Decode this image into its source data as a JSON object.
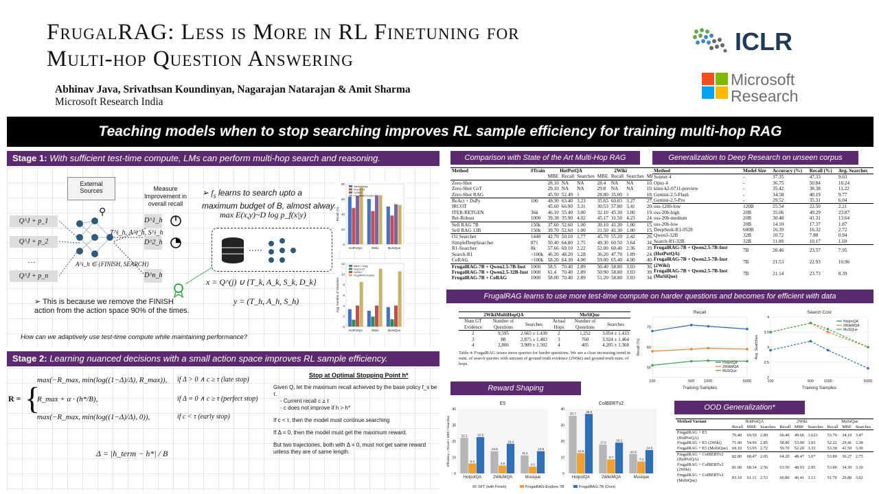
{
  "header": {
    "title_line1": "FrugalRAG: Less is More in RL Finetuning for",
    "title_line2": "Multi-hop Question Answering",
    "authors": "Abhinav Java, Srivathsan Koundinyan, Nagarajan Natarajan & Amit Sharma",
    "affiliation": "Microsoft Research India",
    "logo1": "ICLR",
    "logo2_line1": "Microsoft",
    "logo2_line2": "Research"
  },
  "banner": "Teaching models when to stop searching improves RL sample efficiency for training multi-hop RAG",
  "stage1": {
    "bold": "Stage 1:",
    "text": " With sufficient test-time compute, LMs can perform multi-hop search and reasoning.",
    "external": "External Sources",
    "measure": "Measure Improvement in overall recall",
    "q1": "Q^J + p_1",
    "q2": "Q^J + p_2",
    "qdots": "…",
    "qn": "Q^J + p_n",
    "action_set": "A^i_h ∈ {FINISH, SEARCH}",
    "tas": "T^i_h, A^i_h, S^i_h",
    "d1": "D^1_h",
    "d2": "D^2_h",
    "dn": "D^n_h",
    "fs_text": "learns to search upto a maximum budget of B, almost always",
    "max_eq": "max E(x,y)~D log p_f(x|y)",
    "x_eq": "x = Q^(j) ∪ {T_k, A_k, S_k, D_k}",
    "y_eq": "y = (T_h, A_h, S_h)",
    "bullet": "This is because we remove the FINISH action from the action space 90% of the times.",
    "question": "How can we adaptively use test-time compute while maintaining performance?"
  },
  "stage2": {
    "bold": "Stage 2:",
    "text": " Learning nuanced decisions with a small action space improves RL sample efficiency.",
    "r_label": "R =",
    "case1": "max(−R_max, min(log((1−Δ)/Δ), R_max)),",
    "cond1": "if Δ > 0 ∧ c ≥ τ   (late stop)",
    "case2": "R_max + α · (h*/B),",
    "cond2": "if Δ = 0 ∧ c ≥ τ   (perfect stop)",
    "case3": "max(−R_max, min(log((1−Δ)/Δ), 0)),",
    "cond3": "if c < τ   (early stop)",
    "delta": "Δ = |h_term − h*| / B",
    "stop_title": "Stop at Optimal Stopping Point h*",
    "stop_p1": "Given Q, let the maximum recall achieved by the base policy f_s be τ.",
    "stop_b1": "Current recall c ≥ τ",
    "stop_b2": "c does not improve if h > h*",
    "stop_p2": "If c < τ, then the model must continue searching",
    "stop_p3": "If Δ = 0, then the model must get the maximum reward.",
    "stop_p4": "But two trajectories, both with Δ = 0, must not get same reward unless they are of same length."
  },
  "sota": {
    "header": "Comparison with State of the Art Multi-Hop RAG",
    "cols": [
      "Method",
      "#Train",
      "HotPotQA",
      "2Wiki",
      "MuSiQue"
    ],
    "sub": [
      "MBE",
      "Recall",
      "Searches"
    ],
    "groups": [
      [
        [
          "Zero-Shot",
          "",
          "28.10",
          "NA",
          "NA",
          "28.4",
          "NA",
          "NA",
          "10.60",
          "NA",
          "NA"
        ],
        [
          "Zero-Shot CoT",
          "",
          "29.10",
          "NA",
          "NA",
          "29.8",
          "NA",
          "NA",
          "10.7",
          "NA",
          "NA"
        ],
        [
          "Zero-Shot RAG",
          "",
          "45.50",
          "52.49",
          "1",
          "28.80",
          "35.00",
          "1",
          "18.00",
          "22.01",
          "1"
        ]
      ],
      [
        [
          "ReAct + DsPy",
          "100",
          "49.30",
          "63.40",
          "3.23",
          "35.65",
          "60.03",
          "3.27",
          "27.30",
          "49.8",
          "3.74"
        ],
        [
          "IRCOT",
          "",
          "45.60",
          "66.90",
          "3.31",
          "30.53",
          "57.80",
          "3.41",
          "20.62",
          "44.10",
          "3.19"
        ],
        [
          "ITER-RETGEN",
          "36k",
          "46.10",
          "55.40",
          "3.00",
          "32.10",
          "45.30",
          "3.00",
          "19.10",
          "34.20",
          "3.00"
        ],
        [
          "Ret-Robust",
          "1000",
          "39.38",
          "35.90",
          "4.02",
          "45.17",
          "31.50",
          "4.23",
          "24.24",
          "18.80",
          "4.23"
        ]
      ],
      [
        [
          "Self RAG 7B",
          "150k",
          "37.60",
          "52.60",
          "1.00",
          "30.10",
          "41.30",
          "1.00",
          "15.00",
          "26.70",
          "1.00"
        ],
        [
          "Self RAG 13B",
          "150k",
          "39.70",
          "52.60",
          "1.00",
          "31.50",
          "41.30",
          "1.00",
          "15.00",
          "26.70",
          "1.00"
        ]
      ],
      [
        [
          "O2 Searcher",
          "1440",
          "42.70",
          "50.10",
          "1.77",
          "45.70",
          "55.20",
          "2.42",
          "26.40",
          "37.00",
          "1.95"
        ],
        [
          "SimpleDeepSearcher",
          "871",
          "50.40",
          "64.80",
          "2.75",
          "49.30",
          "60.50",
          "3.64",
          "34.30",
          "50.40",
          "2.86"
        ],
        [
          "R1-Searcher",
          "8k",
          "57.66",
          "69.10",
          "2.22",
          "52.00",
          "60.40",
          "2.36",
          "39.78",
          "57.70",
          "2.31"
        ],
        [
          "Search-R1",
          ">100k",
          "46.20",
          "48.20",
          "1.28",
          "36.20",
          "47.70",
          "1.89",
          "24.80",
          "38.10",
          "1.36"
        ],
        [
          "CoRAG",
          ">100k",
          "58.20",
          "64.30",
          "4.00",
          "59.00",
          "65.40",
          "4.00",
          "40.50",
          "54.00",
          "4.00"
        ]
      ],
      [
        [
          "FrugalRAG-7B + Qwen2.5-7B-Inst",
          "1000",
          "58.5",
          "70.40",
          "2.89",
          "50.40",
          "58.80",
          "3.03",
          "36.40",
          "53.30",
          "3.30"
        ],
        [
          "FrugalRAG-7B + Qwen2.5-32B-Inst",
          "1000",
          "61.4",
          "70.40",
          "2.89",
          "50.90",
          "58.80",
          "3.03",
          "39.90",
          "53.30",
          "3.30"
        ],
        [
          "FrugalRAG-7B + CoRAG",
          "1000",
          "58.00",
          "70.40",
          "2.89",
          "51.20",
          "58.80",
          "3.03",
          "34.60",
          "53.30",
          "3.30"
        ]
      ]
    ]
  },
  "deep": {
    "header": "Generalization to Deep Research on unseen corpus",
    "cols": [
      "Method",
      "Model Size",
      "Accuracy (%)",
      "Recall (%)",
      "Avg. Searches"
    ],
    "groups": [
      [
        [
          "Sonnet 4",
          "-",
          "37.35",
          "47.33",
          "9.03"
        ],
        [
          "Opus 4",
          "-",
          "36.75",
          "50.84",
          "10.24"
        ],
        [
          "kimi-k2-0711-preview",
          "-",
          "35.42",
          "38.38",
          "11.22"
        ],
        [
          "Gemini-2.5-Flash",
          "-",
          "34.58",
          "40.19",
          "9.77"
        ],
        [
          "Gemini-2.5-Pro",
          "-",
          "29.52",
          "35.31",
          "6.04"
        ]
      ],
      [
        [
          "oss-120b-low",
          "120B",
          "25.54",
          "22.50",
          "2.21"
        ],
        [
          "oss-20b-high",
          "20B",
          "35.06",
          "49.29",
          "23.87"
        ],
        [
          "oss-20b-medium",
          "20B",
          "30.48",
          "41.31",
          "13.64"
        ],
        [
          "oss-20b-low",
          "20B",
          "14.10",
          "17.37",
          "1.87"
        ],
        [
          "DeepSeek-R1-0528",
          "600B",
          "16.39",
          "16.32",
          "2.72"
        ],
        [
          "Qwen3-32B",
          "32B",
          "10.72",
          "7.80",
          "0.94"
        ],
        [
          "Search-R1-32B",
          "32B",
          "11.08",
          "10.17",
          "1.69"
        ]
      ],
      [
        [
          "FrugalRAG-7B + Qwen2.5-7B-Inst (HotPotQA)",
          "7B",
          "20.46",
          "23.57",
          "7.95"
        ],
        [
          "FrugalRAG-7B + Qwen2.5-7B-Inst (2Wiki)",
          "7B",
          "21.53",
          "22.93",
          "10.96"
        ],
        [
          "FrugalRAG-7B + Qwen2.5-7B-Inst (MuSiQue)",
          "7B",
          "21.14",
          "23.73",
          "8.39"
        ]
      ]
    ]
  },
  "compute": {
    "header": "FrugalRAG learns to use more test-time compute on harder questions and becomes for efficient with data",
    "t_h1": "2WikiMultiHopQA",
    "t_h2": "MuSiQue",
    "t_cols": [
      "Num GT Evidence",
      "Number of Questions",
      "Searches",
      "Actual Hops",
      "Number of Questions",
      "Searches"
    ],
    "t_rows": [
      [
        "2",
        "9,595",
        "2.665 ± 1.430",
        "2",
        "1,252",
        "3.054 ± 1.433"
      ],
      [
        "3",
        "88",
        "2.875 ± 1.483",
        "3",
        "760",
        "3.924 ± 1.464"
      ],
      [
        "4",
        "2,806",
        "3.909 ± 1.502",
        "4",
        "405",
        "4.205 ± 1.368"
      ]
    ],
    "caption": "Table 4: FrugalRAG issues more queries for harder questions. We see a clear increasing trend in num. of search queries with amount of ground truth evidence (2Wiki) and ground truth num. of hops."
  },
  "reward": {
    "header": "Reward Shaping"
  },
  "ood": {
    "header": "OOD Generalization*",
    "cols": [
      "Method Variant",
      "HotPotQA",
      "2Wiki",
      "MuSiQue"
    ],
    "sub": [
      "Recall",
      "MBE",
      "Searches"
    ],
    "rows": [
      [
        "FrugalRAG + E5 (HotPotQA)",
        "70.40",
        "69.50",
        "2.89",
        "60.40",
        "49.66",
        "3.623",
        "53.70",
        "34.10",
        "3.47"
      ],
      [
        "FrugalRAG + E5 (2Wiki)",
        "71.00",
        "54.96",
        "2.85",
        "58.80",
        "53.00",
        "3.03",
        "52.22",
        "29.41",
        "3.38"
      ],
      [
        "FrugalRAG + E5 (MuSiQue)",
        "69.10",
        "53.95",
        "2.72",
        "59.70",
        "52.20",
        "3.33",
        "53.30",
        "41.50",
        "3.30"
      ],
      [
        "FrugalRAG + ColBERTv2 (HotPotQA)",
        "82.80",
        "68.47",
        "2.05",
        "64.20",
        "48.47",
        "3.07",
        "53.80",
        "36.27",
        "2.75"
      ],
      [
        "FrugalRAG + ColBERTv2 (2Wiki)",
        "81.90",
        "68.34",
        "2.56",
        "63.50",
        "48.93",
        "2.95",
        "53.80",
        "34.30",
        "3.10"
      ],
      [
        "FrugalRAG + ColBERTv2 (MuSiQue)",
        "83.10",
        "61.11",
        "2.53",
        "60.80",
        "46.41",
        "3.13",
        "51.70",
        "29.80",
        "3.02"
      ]
    ]
  },
  "chart_data": [
    {
      "type": "bar",
      "ylabel": "Recall (%)",
      "categories": [
        "HotPotQA",
        "2Wiki",
        "MuSiQue"
      ],
      "ylim": [
        0,
        80
      ],
      "legend": "top-left",
      "series": [
        {
          "name": "Naive + Dspy",
          "color": "#4472c4",
          "values": [
            63,
            60,
            50
          ]
        },
        {
          "name": "Search-R1",
          "color": "#c0504d",
          "values": [
            48,
            44,
            38
          ]
        },
        {
          "name": "CoRAG",
          "color": "#8064a2",
          "values": [
            64,
            65,
            53
          ]
        },
        {
          "name": "FrugalRAG-Explore",
          "color": "#c9b26b",
          "values": [
            77,
            65,
            52
          ]
        }
      ]
    },
    {
      "type": "bar",
      "ylabel": "Avg. Number of Searches",
      "categories": [
        "HotPotQA",
        "2Wiki",
        "MuSiQue"
      ],
      "ylim": [
        0,
        12
      ],
      "legend": "top-left",
      "series": [
        {
          "name": "Naive + Dspy",
          "color": "#4472c4",
          "values": [
            3.3,
            3.0,
            3.7
          ]
        },
        {
          "name": "Search-R1",
          "color": "#2e8b57",
          "values": [
            1.3,
            1.9,
            1.4
          ]
        },
        {
          "name": "CoRAG",
          "color": "#c0504d",
          "values": [
            4.0,
            4.0,
            4.0
          ]
        },
        {
          "name": "FrugalRAG-Explore",
          "color": "#c9b26b",
          "values": [
            8.5,
            11.0,
            10.5
          ]
        }
      ]
    },
    {
      "type": "line",
      "title": "Recall",
      "xlabel": "Training Samples",
      "ylabel": "Recall (%)",
      "x": [
        100,
        500,
        1000,
        5000
      ],
      "ylim": [
        45,
        75
      ],
      "legend": "bottom-right",
      "series": [
        {
          "name": "HotpotQA",
          "color": "#2e6fb5",
          "values": [
            68,
            71,
            70.4,
            69
          ]
        },
        {
          "name": "2WikiMQA",
          "color": "#e8822c",
          "values": [
            58,
            59,
            59.5,
            59
          ]
        },
        {
          "name": "MuSiQue",
          "color": "#3aa84a",
          "values": [
            51,
            53,
            53.3,
            53
          ]
        }
      ]
    },
    {
      "type": "line",
      "title": "Search Cost",
      "xlabel": "Training Samples",
      "ylabel": "Avg. Searches",
      "x": [
        100,
        500,
        1000,
        5000
      ],
      "ylim": [
        2.0,
        4.0
      ],
      "legend": "top-right",
      "series": [
        {
          "name": "HotpotQA",
          "color": "#2e6fb5",
          "values": [
            2.9,
            3.2,
            2.9,
            2.3
          ]
        },
        {
          "name": "2WikiMQA",
          "color": "#e8822c",
          "values": [
            3.5,
            3.8,
            3.5,
            3.0
          ]
        },
        {
          "name": "MuSiQue",
          "color": "#3aa84a",
          "values": [
            3.5,
            3.8,
            3.6,
            3.0
          ]
        }
      ]
    },
    {
      "type": "bar",
      "title": "E5",
      "ylabel": "Efficiency = Recall × MBE / Searches",
      "categories": [
        "HotpotQA",
        "2WikiMQA",
        "Musique"
      ],
      "ylim": [
        0,
        40
      ],
      "series": [
        {
          "name": "SFT (with Finish)",
          "color": "#b5b5b5",
          "values": [
            22.1,
            13.8,
            11.2
          ]
        },
        {
          "name": "FrugalRAG-Explore-7B",
          "color": "#f0a030",
          "values": [
            6.2,
            4.9,
            4.2
          ]
        },
        {
          "name": "FrugalRAG-7B (Ours)",
          "color": "#2e6fb5",
          "values": [
            22.5,
            18.4,
            13.8
          ]
        }
      ]
    },
    {
      "type": "bar",
      "title": "ColBERTv2",
      "ylabel": "",
      "categories": [
        "HotpotQA",
        "2WikiMQA",
        "Musique"
      ],
      "ylim": [
        0,
        40
      ],
      "series": [
        {
          "name": "SFT (with Finish)",
          "color": "#b5b5b5",
          "values": [
            35.7,
            17.9,
            12.2
          ]
        },
        {
          "name": "FrugalRAG-Explore-7B",
          "color": "#f0a030",
          "values": [
            12.6,
            8.7,
            7.4
          ]
        },
        {
          "name": "FrugalRAG-7B (Ours)",
          "color": "#2e6fb5",
          "values": [
            36.9,
            19.1,
            14.5
          ]
        }
      ]
    }
  ]
}
